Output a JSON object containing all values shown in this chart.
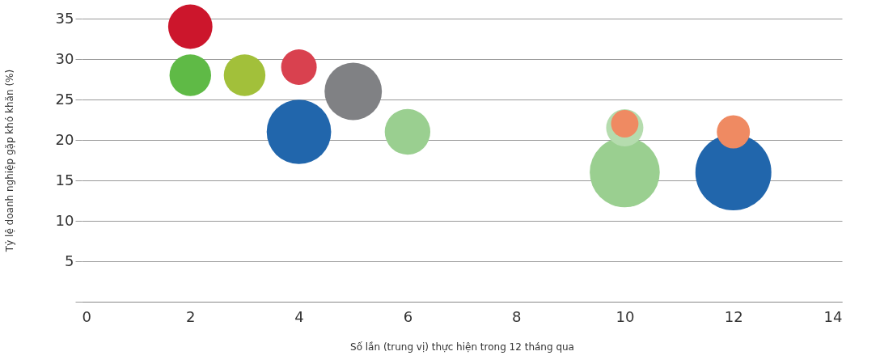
{
  "chart_data": {
    "type": "bubble",
    "xlabel": "Số lần (trung vị) thực hiện trong 12 tháng qua",
    "ylabel": "Tỷ lệ doanh nghiệp gặp khó khăn (%)",
    "x": [
      2,
      2,
      3,
      4,
      5,
      4,
      6,
      10,
      10,
      10,
      12,
      12
    ],
    "values": [
      34,
      28,
      28,
      29,
      26,
      21,
      21,
      16,
      21.5,
      22,
      16,
      21
    ],
    "sizes": [
      0.34,
      0.3,
      0.3,
      0.22,
      0.57,
      0.72,
      0.36,
      0.85,
      0.24,
      0.13,
      1,
      0.19
    ],
    "colors": [
      "#cc162c",
      "#5fba46",
      "#a2c03a",
      "#d9414f",
      "#808184",
      "#2166ac",
      "#9acf90",
      "#9acf90",
      "#b5dcae",
      "#ef8a62",
      "#2166ac",
      "#ef8a62"
    ],
    "xlim": [
      0,
      14
    ],
    "xticks": [
      0,
      2,
      4,
      6,
      8,
      10,
      12,
      14
    ],
    "ylim": [
      0,
      35
    ],
    "yticks": [
      {
        "value": 0,
        "label": null
      },
      5,
      10,
      15,
      20,
      25,
      30,
      35
    ],
    "grid": "y",
    "legend": false
  }
}
